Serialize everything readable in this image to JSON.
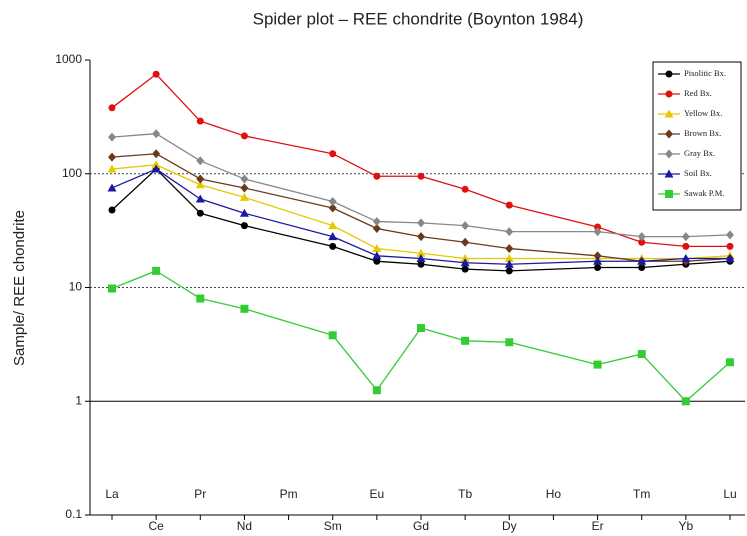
{
  "chart_data": {
    "type": "line",
    "title": "Spider plot – REE chondrite (Boynton 1984)",
    "ylabel": "Sample/ REE chondrite",
    "categories": [
      "La",
      "Ce",
      "Pr",
      "Nd",
      "Pm",
      "Sm",
      "Eu",
      "Gd",
      "Tb",
      "Dy",
      "Ho",
      "Er",
      "Tm",
      "Yb",
      "Lu"
    ],
    "log_y": true,
    "ylim": [
      0.1,
      1000
    ],
    "yticks": [
      0.1,
      1,
      10,
      100,
      1000
    ],
    "grid": true,
    "legend": "upper right",
    "series": [
      {
        "name": "Pisolitic Bx.",
        "color": "#000000",
        "marker": "circle",
        "values": [
          48,
          110,
          45,
          35,
          null,
          23,
          17,
          16,
          14.5,
          14,
          null,
          15,
          15,
          16,
          17
        ]
      },
      {
        "name": "Red Bx.",
        "color": "#e01010",
        "marker": "circle",
        "values": [
          380,
          750,
          290,
          215,
          null,
          150,
          95,
          95,
          73,
          53,
          null,
          34,
          25,
          23,
          23
        ]
      },
      {
        "name": "Yellow Bx.",
        "color": "#e8c800",
        "marker": "triangle",
        "values": [
          110,
          120,
          80,
          62,
          null,
          35,
          22,
          20,
          18,
          18,
          null,
          18,
          18,
          18,
          19
        ]
      },
      {
        "name": "Brown Bx.",
        "color": "#6b3a1a",
        "marker": "diamond",
        "values": [
          140,
          150,
          90,
          75,
          null,
          50,
          33,
          28,
          25,
          22,
          null,
          19,
          17,
          17,
          18
        ]
      },
      {
        "name": "Gray Bx.",
        "color": "#888888",
        "marker": "diamond",
        "values": [
          210,
          225,
          130,
          90,
          null,
          57,
          38,
          37,
          35,
          31,
          null,
          31,
          28,
          28,
          29
        ]
      },
      {
        "name": "Soil Bx.",
        "color": "#1a1aa0",
        "marker": "triangle",
        "values": [
          75,
          110,
          60,
          45,
          null,
          28,
          19,
          18,
          16.5,
          16,
          null,
          17,
          17,
          18,
          18
        ]
      },
      {
        "name": "Sawak P.M.",
        "color": "#33cc33",
        "marker": "square",
        "values": [
          9.8,
          14,
          8,
          6.5,
          null,
          3.8,
          1.25,
          4.4,
          3.4,
          3.3,
          null,
          2.1,
          2.6,
          1,
          2.2
        ]
      }
    ]
  }
}
